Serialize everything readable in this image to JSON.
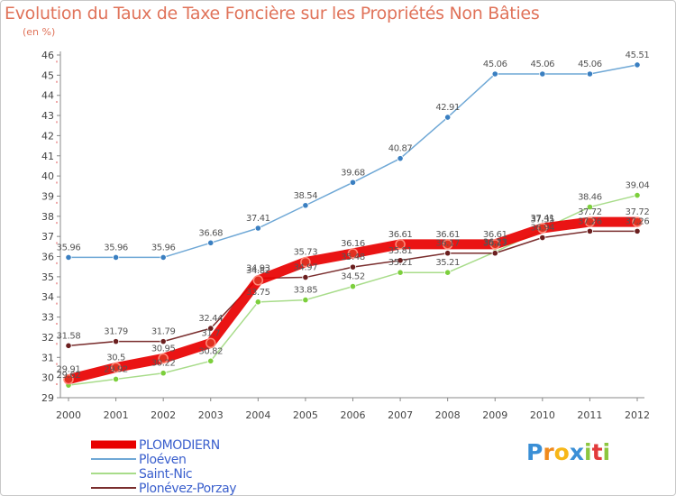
{
  "title": "Evolution du Taux de Taxe Foncière sur les Propriétés Non Bâties",
  "unit_label": "(en %)",
  "brand": {
    "letters": [
      "P",
      "r",
      "o",
      "x",
      "i",
      "t",
      "i"
    ],
    "colors": [
      "#3a8fd6",
      "#f08a1c",
      "#f7b718",
      "#3a8fd6",
      "#8cc63f",
      "#e23b3b",
      "#8cc63f"
    ]
  },
  "chart_data": {
    "type": "line",
    "title": "Evolution du Taux de Taxe Foncière sur les Propriétés Non Bâties",
    "ylabel": "(en %)",
    "xlabel": "",
    "ylim": [
      29,
      46
    ],
    "yticks": [
      29,
      30,
      31,
      32,
      33,
      34,
      35,
      36,
      37,
      38,
      39,
      40,
      41,
      42,
      43,
      44,
      45,
      46
    ],
    "grid": false,
    "legend_position": "bottom-left",
    "x": [
      "2000",
      "2001",
      "2002",
      "2003",
      "2004",
      "2005",
      "2006",
      "2007",
      "2008",
      "2009",
      "2010",
      "2011",
      "2012"
    ],
    "series": [
      {
        "name": "PLOMODIERN",
        "color": "#e80000",
        "point_color": "#e03020",
        "values": [
          29.91,
          30.5,
          30.95,
          31.71,
          34.82,
          35.73,
          36.16,
          36.61,
          36.61,
          36.61,
          37.41,
          37.72,
          37.72
        ],
        "labels": [
          "29.91",
          "30.5",
          "30.95",
          "31.7",
          "34.82",
          "35.73",
          "36.16",
          "36.61",
          "36.61",
          "36.61",
          "37.41",
          "37.72",
          "37.72"
        ]
      },
      {
        "name": "Ploéven",
        "color": "#6fa8d6",
        "point_color": "#3a7fc1",
        "values": [
          35.96,
          35.96,
          35.96,
          36.68,
          37.41,
          38.54,
          39.68,
          40.87,
          42.91,
          45.06,
          45.06,
          45.06,
          45.51
        ],
        "labels": [
          "35.96",
          "35.96",
          "35.96",
          "36.68",
          "37.41",
          "38.54",
          "39.68",
          "40.87",
          "42.91",
          "45.06",
          "45.06",
          "45.06",
          "45.51"
        ]
      },
      {
        "name": "Saint-Nic",
        "color": "#a8dc8a",
        "point_color": "#7ccf3c",
        "values": [
          29.62,
          29.92,
          30.22,
          30.82,
          33.75,
          33.85,
          34.52,
          35.21,
          35.21,
          36.23,
          37.35,
          38.46,
          39.04
        ],
        "labels": [
          "29.62",
          "29.92",
          "30.22",
          "30.82",
          "33.75",
          "33.85",
          "34.52",
          "35.21",
          "35.21",
          "36.23",
          "37.35",
          "38.46",
          "39.04"
        ]
      },
      {
        "name": "Plonévez-Porzay",
        "color": "#7a2e2e",
        "point_color": "#6b1f1f",
        "values": [
          31.58,
          31.79,
          31.79,
          32.44,
          34.93,
          34.97,
          35.48,
          35.81,
          36.17,
          36.17,
          36.94,
          37.26,
          37.26
        ],
        "labels": [
          "31.58",
          "31.79",
          "31.79",
          "32.44",
          "34.93",
          "34.97",
          "35.48",
          "35.81",
          "36.17",
          "36.17",
          "36.94",
          "37.26",
          "37.26"
        ]
      }
    ]
  }
}
